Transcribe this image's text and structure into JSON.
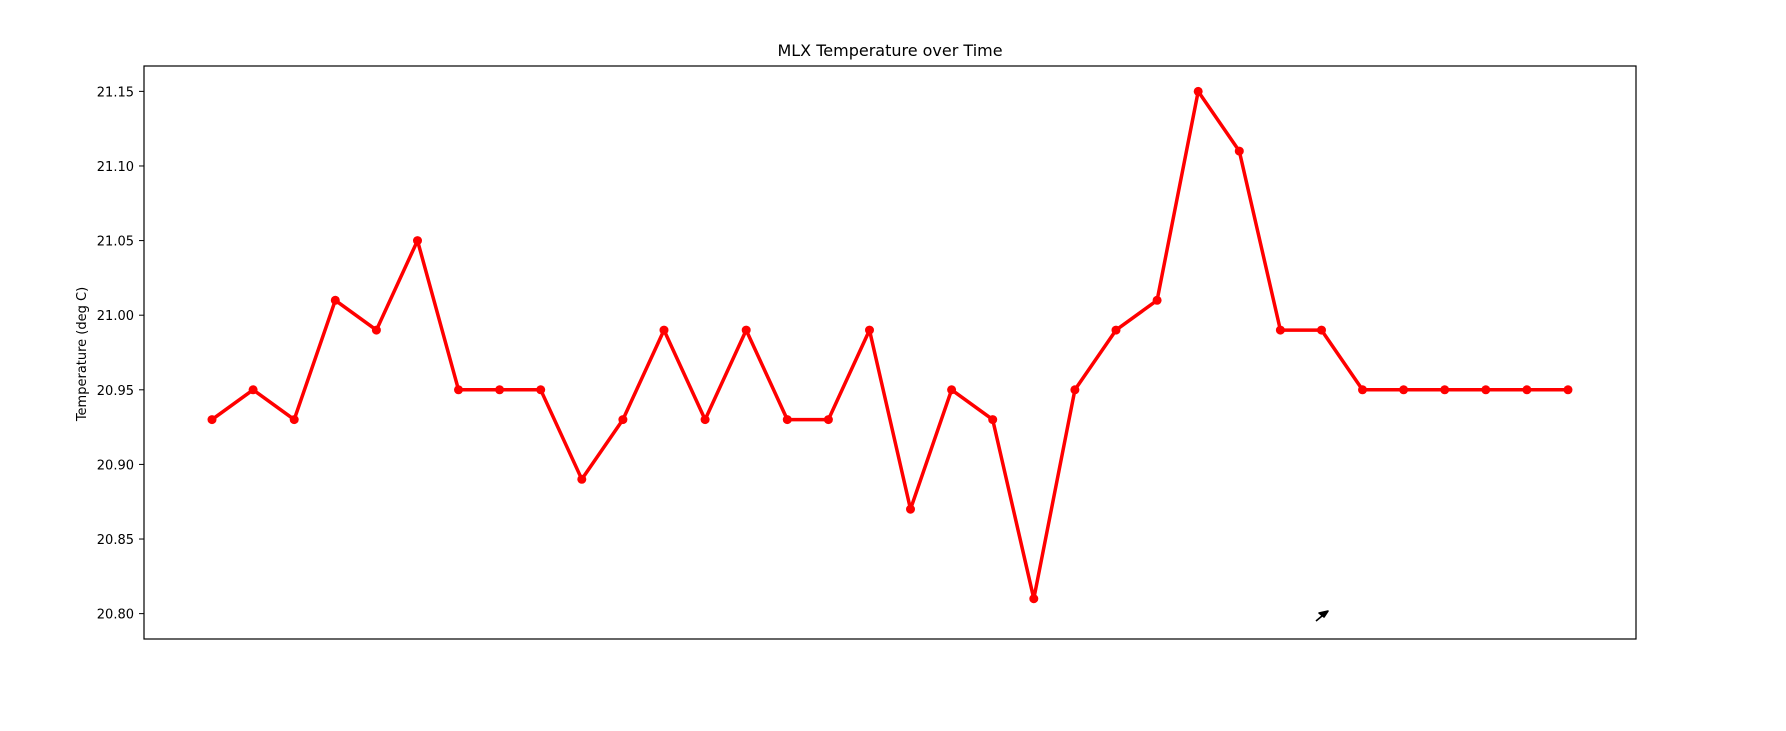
{
  "chart_data": {
    "type": "line",
    "title": "MLX Temperature over Time",
    "xlabel": "",
    "ylabel": "Temperature (deg C)",
    "ylim": [
      20.783,
      21.167
    ],
    "yticks": [
      20.8,
      20.85,
      20.9,
      20.95,
      21.0,
      21.05,
      21.1,
      21.15
    ],
    "ytick_labels": [
      "20.80",
      "20.85",
      "20.90",
      "20.95",
      "21.00",
      "21.05",
      "21.10",
      "21.15"
    ],
    "x_ticks_visible": false,
    "grid": false,
    "legend": "none",
    "series": [
      {
        "color": "#ff0000",
        "marker": "circle",
        "values": [
          20.93,
          20.95,
          20.93,
          21.01,
          20.99,
          21.05,
          20.95,
          20.95,
          20.95,
          20.89,
          20.93,
          20.99,
          20.93,
          20.99,
          20.93,
          20.93,
          20.99,
          20.87,
          20.95,
          20.93,
          20.81,
          20.95,
          20.99,
          21.01,
          21.15,
          21.11,
          20.99,
          20.99,
          20.95,
          20.95,
          20.95,
          20.95,
          20.95,
          20.95
        ]
      }
    ]
  },
  "cursor": {
    "icon": "mouse-pointer-icon"
  }
}
